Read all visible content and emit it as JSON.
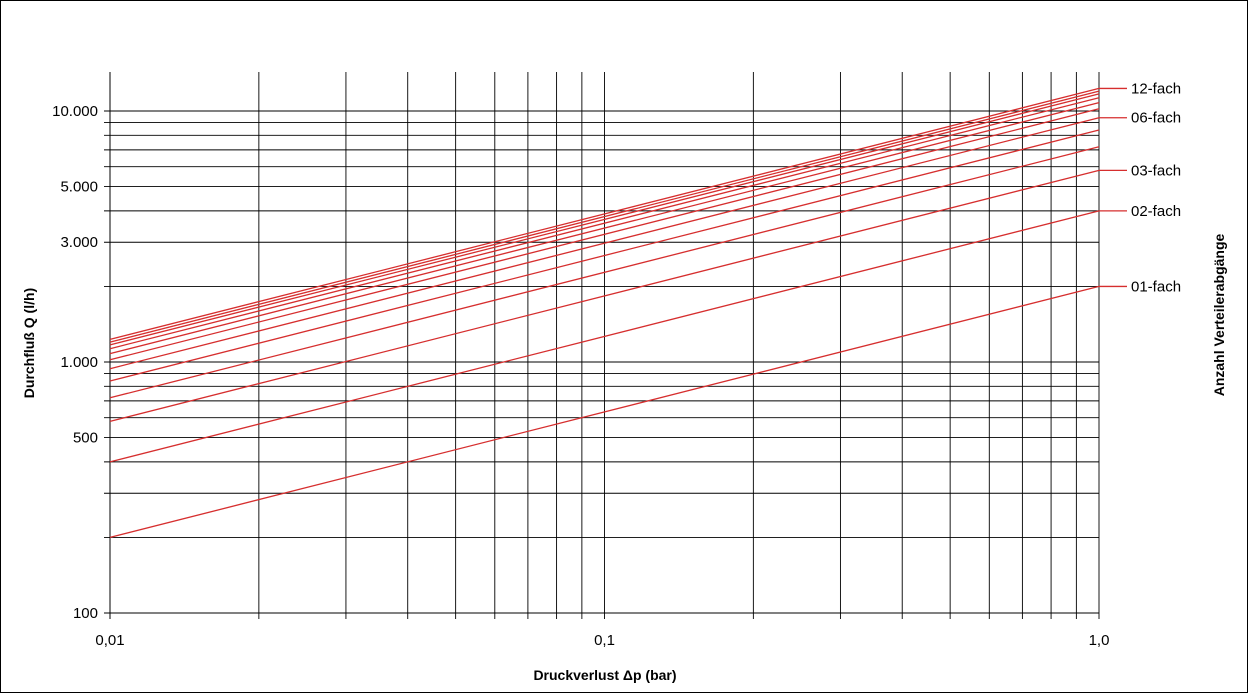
{
  "chart_data": {
    "type": "line",
    "title": "",
    "xlabel": "Druckverlust Δp (bar)",
    "ylabel": "Durchfluß Q (l/h)",
    "right_label": "Anzahl Verteilerabgänge",
    "x_scale": "log",
    "y_scale": "log",
    "xlim": [
      0.01,
      1.0
    ],
    "ylim": [
      100,
      15000
    ],
    "grid": true,
    "x_ticks": [
      {
        "value": 0.01,
        "label": "0,01"
      },
      {
        "value": 0.1,
        "label": "0,1"
      },
      {
        "value": 1.0,
        "label": "1,0"
      }
    ],
    "y_ticks": [
      {
        "value": 100,
        "label": "100"
      },
      {
        "value": 500,
        "label": "500"
      },
      {
        "value": 1000,
        "label": "1.000"
      },
      {
        "value": 3000,
        "label": "3.000"
      },
      {
        "value": 5000,
        "label": "5.000"
      },
      {
        "value": 10000,
        "label": "10.000"
      }
    ],
    "x_gridlines": [
      0.01,
      0.02,
      0.03,
      0.04,
      0.05,
      0.06,
      0.07,
      0.08,
      0.09,
      0.1,
      0.2,
      0.3,
      0.4,
      0.5,
      0.6,
      0.7,
      0.8,
      0.9,
      1.0
    ],
    "y_gridlines": [
      200,
      300,
      400,
      500,
      600,
      700,
      800,
      900,
      1000,
      2000,
      3000,
      4000,
      5000,
      6000,
      7000,
      8000,
      9000,
      10000
    ],
    "line_color": "#d62e2e",
    "series": [
      {
        "x": [
          0.01,
          1.0
        ],
        "y": [
          200,
          2000
        ],
        "label": "01-fach"
      },
      {
        "x": [
          0.01,
          1.0
        ],
        "y": [
          400,
          4000
        ],
        "label": "02-fach"
      },
      {
        "x": [
          0.01,
          1.0
        ],
        "y": [
          580,
          5800
        ],
        "label": "03-fach"
      },
      {
        "x": [
          0.01,
          1.0
        ],
        "y": [
          720,
          7200
        ],
        "label": ""
      },
      {
        "x": [
          0.01,
          1.0
        ],
        "y": [
          840,
          8400
        ],
        "label": ""
      },
      {
        "x": [
          0.01,
          1.0
        ],
        "y": [
          940,
          9400
        ],
        "label": "06-fach"
      },
      {
        "x": [
          0.01,
          1.0
        ],
        "y": [
          1020,
          10200
        ],
        "label": ""
      },
      {
        "x": [
          0.01,
          1.0
        ],
        "y": [
          1080,
          10800
        ],
        "label": ""
      },
      {
        "x": [
          0.01,
          1.0
        ],
        "y": [
          1130,
          11300
        ],
        "label": ""
      },
      {
        "x": [
          0.01,
          1.0
        ],
        "y": [
          1170,
          11700
        ],
        "label": ""
      },
      {
        "x": [
          0.01,
          1.0
        ],
        "y": [
          1200,
          12000
        ],
        "label": ""
      },
      {
        "x": [
          0.01,
          1.0
        ],
        "y": [
          1230,
          12300
        ],
        "label": "12-fach"
      }
    ]
  }
}
